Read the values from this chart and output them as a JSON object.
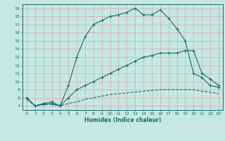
{
  "title": "",
  "xlabel": "Humidex (Indice chaleur)",
  "bg_color": "#c5e8e5",
  "line_color": "#1a6b6b",
  "grid_color": "#d8a8a8",
  "xlim": [
    -0.5,
    23.5
  ],
  "ylim": [
    6.5,
    19.5
  ],
  "yticks": [
    7,
    8,
    9,
    10,
    11,
    12,
    13,
    14,
    15,
    16,
    17,
    18,
    19
  ],
  "xticks": [
    0,
    1,
    2,
    3,
    4,
    5,
    6,
    7,
    8,
    9,
    10,
    11,
    12,
    13,
    14,
    15,
    16,
    17,
    18,
    19,
    20,
    21,
    22,
    23
  ],
  "line1_x": [
    0,
    1,
    2,
    3,
    4,
    5,
    6,
    7,
    8,
    9,
    10,
    11,
    12,
    13,
    14,
    15,
    16,
    17,
    18,
    19,
    20,
    21,
    22,
    23
  ],
  "line1_y": [
    8.0,
    7.0,
    7.3,
    7.5,
    7.0,
    9.5,
    13.0,
    15.5,
    17.0,
    17.5,
    18.0,
    18.2,
    18.5,
    19.0,
    18.2,
    18.2,
    18.8,
    17.8,
    16.5,
    15.0,
    11.0,
    10.5,
    9.5,
    9.3
  ],
  "line2_x": [
    0,
    1,
    2,
    3,
    4,
    5,
    6,
    7,
    8,
    9,
    10,
    11,
    12,
    13,
    14,
    15,
    16,
    17,
    18,
    19,
    20,
    21,
    22,
    23
  ],
  "line2_y": [
    8.0,
    7.0,
    7.2,
    7.3,
    7.0,
    8.0,
    9.0,
    9.5,
    10.0,
    10.5,
    11.0,
    11.5,
    12.0,
    12.5,
    13.0,
    13.2,
    13.5,
    13.5,
    13.5,
    13.8,
    13.8,
    11.0,
    10.3,
    9.5
  ],
  "line3_x": [
    0,
    1,
    2,
    3,
    4,
    5,
    6,
    7,
    8,
    9,
    10,
    11,
    12,
    13,
    14,
    15,
    16,
    17,
    18,
    19,
    20,
    21,
    22,
    23
  ],
  "line3_y": [
    7.8,
    7.0,
    7.2,
    7.2,
    7.0,
    7.3,
    7.5,
    7.8,
    8.0,
    8.2,
    8.4,
    8.5,
    8.6,
    8.7,
    8.8,
    8.9,
    9.0,
    9.0,
    9.0,
    9.0,
    9.0,
    8.8,
    8.7,
    8.5
  ]
}
